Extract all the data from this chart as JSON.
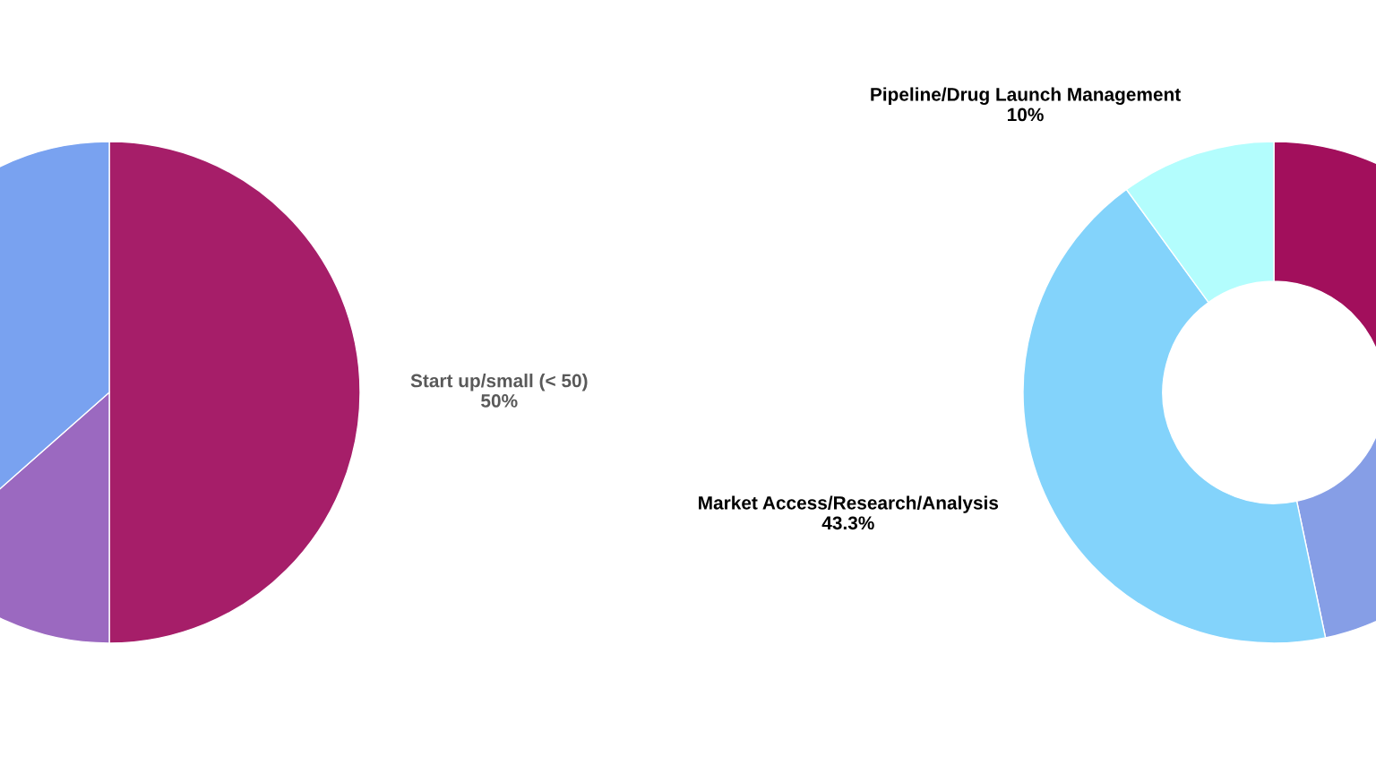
{
  "chart_data": [
    {
      "type": "pie",
      "categories": [
        "Start up/small (< 50)",
        null,
        null
      ],
      "values": [
        50,
        13.5,
        36.5
      ],
      "value_labels": [
        "50%",
        null,
        null
      ],
      "colors": [
        "#a61e69",
        "#9b69c0",
        "#79a2f0"
      ]
    },
    {
      "type": "donut",
      "categories": [
        null,
        null,
        "Market Access/Research/Analysis",
        "Pipeline/Drug Launch Management"
      ],
      "values": [
        27.8,
        18.9,
        43.3,
        10
      ],
      "value_labels": [
        null,
        null,
        "43.3%",
        "10%"
      ],
      "colors": [
        "#a20f5c",
        "#869ee6",
        "#83d3fb",
        "#b3fdfd"
      ]
    }
  ]
}
